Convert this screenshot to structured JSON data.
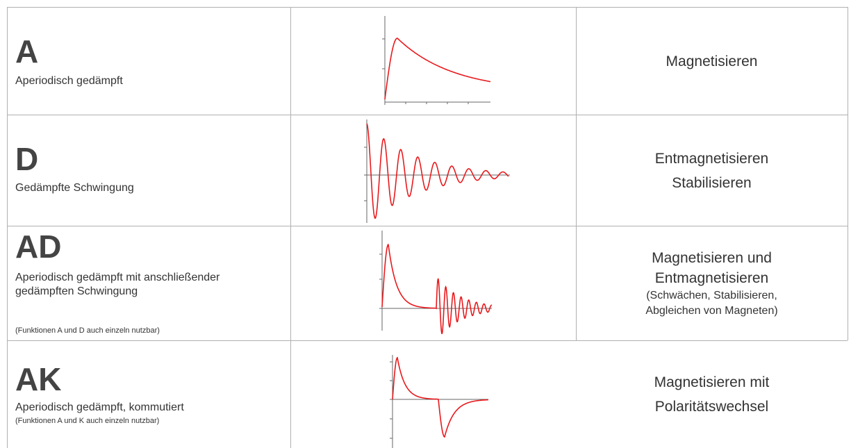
{
  "rows": [
    {
      "code": "A",
      "description": "Aperiodisch gedämpft",
      "note": "",
      "application": [
        "Magnetisieren"
      ],
      "application_sub": []
    },
    {
      "code": "D",
      "description": "Gedämpfte Schwingung",
      "note": "",
      "application": [
        "Entmagnetisieren",
        "Stabilisieren"
      ],
      "application_sub": []
    },
    {
      "code": "AD",
      "description": "Aperiodisch gedämpft mit anschließender gedämpften Schwingung",
      "note": "(Funktionen A und D auch einzeln nutzbar)",
      "application": [
        "Magnetisieren und",
        "Entmagnetisieren"
      ],
      "application_sub": [
        "(Schwächen, Stabilisieren,",
        "Abgleichen von Magneten)"
      ]
    },
    {
      "code": "AK",
      "description": "Aperiodisch gedämpft, kommutiert",
      "note": "(Funktionen A und K auch einzeln nutzbar)",
      "application": [
        "Magnetisieren mit",
        "Polaritätswechsel"
      ],
      "application_sub": []
    }
  ],
  "colors": {
    "curve": "#e8191c",
    "grid": "#b0b0b0",
    "text": "#333333"
  }
}
